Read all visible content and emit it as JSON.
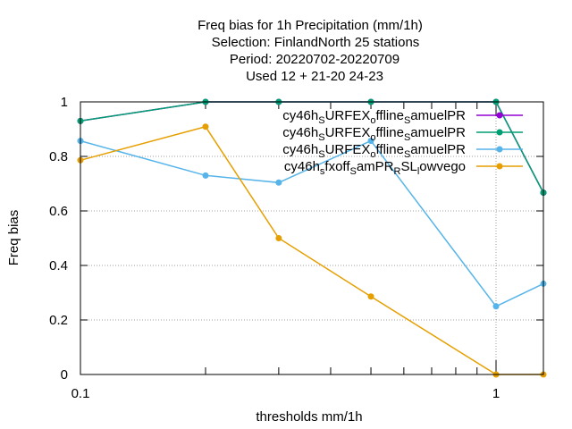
{
  "chart_data": {
    "type": "line",
    "title_lines": [
      "Freq bias  for 1h Precipitation (mm/1h)",
      "Selection: FinlandNorth     25 stations",
      "Period: 20220702-20220709",
      "Used  12 + 21-20 24-23"
    ],
    "xlabel": "thresholds mm/1h",
    "ylabel": "Freq bias",
    "x_scale": "log",
    "xlim": [
      0.1,
      1.3
    ],
    "ylim": [
      0,
      1
    ],
    "x_ticks": [
      {
        "value": 0.1,
        "label": "0.1"
      },
      {
        "value": 1,
        "label": "1"
      }
    ],
    "y_ticks": [
      {
        "value": 0,
        "label": "0"
      },
      {
        "value": 0.2,
        "label": "0.2"
      },
      {
        "value": 0.4,
        "label": "0.4"
      },
      {
        "value": 0.6,
        "label": "0.6"
      },
      {
        "value": 0.8,
        "label": "0.8"
      },
      {
        "value": 1,
        "label": "1"
      }
    ],
    "grid": true,
    "legend_position": "top-right",
    "x": [
      0.1,
      0.2,
      0.3,
      0.5,
      1.0,
      1.3
    ],
    "series": [
      {
        "name_parts": [
          "cy46h",
          "S",
          "URFEX",
          "o",
          "ffline",
          "S",
          "amuelPR"
        ],
        "color": "#9400d3",
        "values": [
          0.93,
          1.0,
          1.0,
          1.0,
          1.0,
          0.667
        ]
      },
      {
        "name_parts": [
          "cy46h",
          "S",
          "URFEX",
          "o",
          "ffline",
          "S",
          "amuelPR"
        ],
        "color": "#009e73",
        "values": [
          0.93,
          1.0,
          1.0,
          1.0,
          1.0,
          0.667
        ]
      },
      {
        "name_parts": [
          "cy46h",
          "S",
          "URFEX",
          "o",
          "ffline",
          "S",
          "amuelPR"
        ],
        "color": "#56b4e9",
        "values": [
          0.857,
          0.73,
          0.704,
          0.857,
          0.25,
          0.333
        ]
      },
      {
        "name_parts": [
          "cy46h",
          "s",
          "fxoff",
          "S",
          "amPR",
          "R",
          "SL",
          "l",
          "owvego"
        ],
        "color": "#e69f00",
        "values": [
          0.786,
          0.909,
          0.5,
          0.286,
          0.0,
          0.0
        ]
      }
    ]
  }
}
